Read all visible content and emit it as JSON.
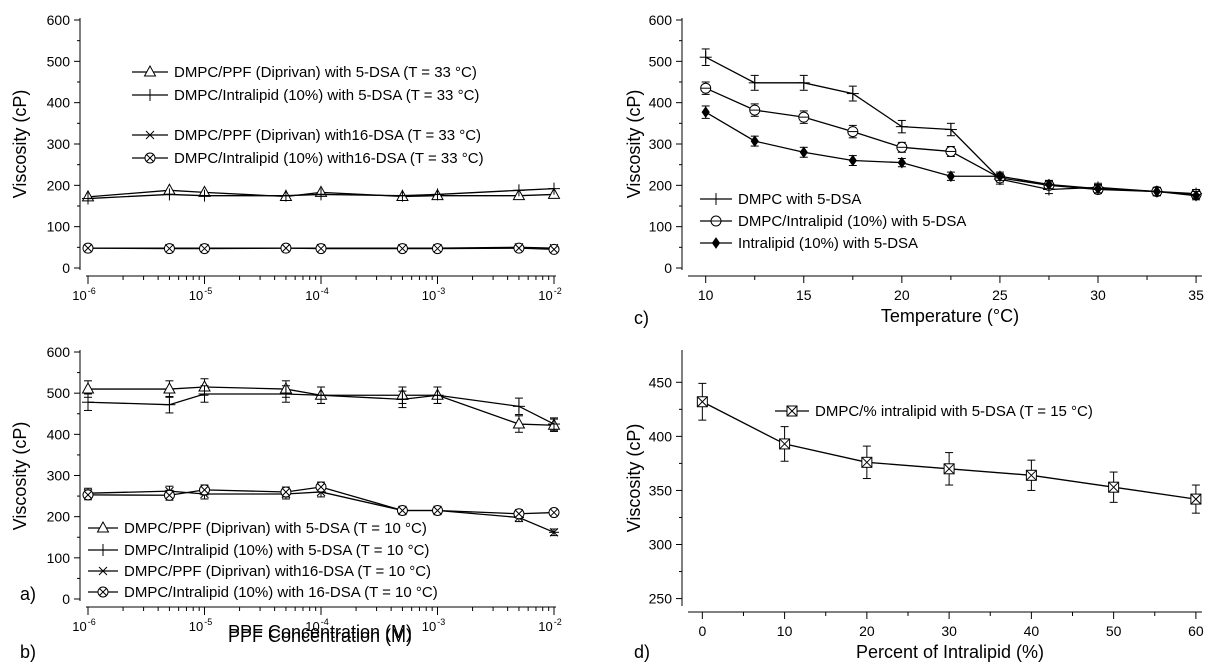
{
  "chart_data": [
    {
      "id": "a",
      "panel_label": "a)",
      "type": "line",
      "xlabel": "PPF Concentration (M)",
      "ylabel": "Viscosity (cP)",
      "x_scale": "log",
      "xlim": [
        1e-06,
        0.01
      ],
      "ylim": [
        0,
        600
      ],
      "yticks": [
        "0",
        "100",
        "200",
        "300",
        "400",
        "500",
        "600"
      ],
      "xticks": [
        {
          "base": "10",
          "exp": "-6"
        },
        {
          "base": "10",
          "exp": "-5"
        },
        {
          "base": "10",
          "exp": "-4"
        },
        {
          "base": "10",
          "exp": "-3"
        },
        {
          "base": "10",
          "exp": "-2"
        }
      ],
      "x": [
        1e-06,
        5e-06,
        1e-05,
        5e-05,
        0.0001,
        0.0005,
        0.001,
        0.005,
        0.01
      ],
      "series": [
        {
          "name": "DMPC/PPF (Diprivan) with 5-DSA (T = 33 °C)",
          "marker": "triangle",
          "values": [
            172,
            188,
            183,
            173,
            183,
            173,
            175,
            175,
            178
          ]
        },
        {
          "name": "DMPC/Intralipid (10%) with 5-DSA (T = 33 °C)",
          "marker": "plus",
          "values": [
            168,
            178,
            175,
            175,
            178,
            175,
            178,
            188,
            192
          ]
        },
        {
          "name": "DMPC/PPF (Diprivan) with16-DSA (T = 33 °C)",
          "marker": "asterisk",
          "values": [
            48,
            48,
            48,
            48,
            48,
            48,
            48,
            50,
            48
          ]
        },
        {
          "name": "DMPC/Intralipid (10%) with16-DSA (T = 33 °C)",
          "marker": "circle-x",
          "values": [
            48,
            47,
            47,
            48,
            47,
            47,
            47,
            48,
            45
          ]
        }
      ]
    },
    {
      "id": "b",
      "panel_label": "b)",
      "type": "line",
      "xlabel": "PPF Concentration (M)",
      "ylabel": "Viscosity (cP)",
      "x_scale": "log",
      "xlim": [
        1e-06,
        0.01
      ],
      "ylim": [
        0,
        600
      ],
      "yticks": [
        "0",
        "100",
        "200",
        "300",
        "400",
        "500",
        "600"
      ],
      "xticks": [
        {
          "base": "10",
          "exp": "-6"
        },
        {
          "base": "10",
          "exp": "-5"
        },
        {
          "base": "10",
          "exp": "-4"
        },
        {
          "base": "10",
          "exp": "-3"
        },
        {
          "base": "10",
          "exp": "-2"
        }
      ],
      "x": [
        1e-06,
        5e-06,
        1e-05,
        5e-05,
        0.0001,
        0.0005,
        0.001,
        0.005,
        0.01
      ],
      "series": [
        {
          "name": "DMPC/PPF (Diprivan) with 5-DSA (T = 10 °C)",
          "marker": "triangle",
          "values": [
            510,
            510,
            515,
            510,
            495,
            495,
            495,
            425,
            422
          ],
          "errors": [
            20,
            20,
            20,
            20,
            20,
            20,
            20,
            20,
            15
          ]
        },
        {
          "name": "DMPC/Intralipid (10%) with 5-DSA (T = 10 °C)",
          "marker": "plus",
          "values": [
            478,
            472,
            498,
            498,
            495,
            485,
            495,
            468,
            425
          ],
          "errors": [
            20,
            20,
            20,
            20,
            20,
            20,
            20,
            20,
            15
          ]
        },
        {
          "name": "DMPC/PPF (Diprivan) with16-DSA (T = 10 °C)",
          "marker": "asterisk",
          "values": [
            257,
            262,
            255,
            255,
            260,
            215,
            215,
            198,
            162
          ],
          "errors": [
            12,
            12,
            12,
            12,
            12,
            10,
            10,
            10,
            8
          ]
        },
        {
          "name": "DMPC/Intralipid (10%) with 16-DSA (T = 10 °C)",
          "marker": "circle-x",
          "values": [
            253,
            252,
            265,
            260,
            272,
            215,
            215,
            207,
            210
          ],
          "errors": [
            12,
            12,
            12,
            12,
            12,
            10,
            10,
            10,
            8
          ]
        }
      ]
    },
    {
      "id": "c",
      "panel_label": "c)",
      "type": "line",
      "xlabel": "Temperature (°C)",
      "ylabel": "Viscosity (cP)",
      "x_scale": "linear",
      "xlim": [
        9.2,
        35.2
      ],
      "ylim": [
        0,
        600
      ],
      "yticks": [
        "0",
        "100",
        "200",
        "300",
        "400",
        "500",
        "600"
      ],
      "xtick_values": [
        10,
        15,
        20,
        25,
        30,
        35
      ],
      "xticks": [
        "10",
        "15",
        "20",
        "25",
        "30",
        "35"
      ],
      "x": [
        10,
        12.5,
        15,
        17.5,
        20,
        22.5,
        25,
        27.5,
        30,
        33,
        35
      ],
      "series": [
        {
          "name": "DMPC with 5-DSA",
          "marker": "plus",
          "values": [
            510,
            448,
            448,
            422,
            342,
            335,
            215,
            190,
            195,
            185,
            180
          ],
          "errors": [
            20,
            18,
            18,
            18,
            15,
            15,
            12,
            10,
            10,
            10,
            10
          ]
        },
        {
          "name": "DMPC/Intralipid (10%) with 5-DSA",
          "marker": "circle",
          "values": [
            435,
            382,
            365,
            330,
            292,
            282,
            218,
            200,
            190,
            185,
            178
          ],
          "errors": [
            15,
            15,
            15,
            15,
            12,
            12,
            10,
            10,
            10,
            10,
            10
          ]
        },
        {
          "name": "Intralipid (10%) with 5-DSA",
          "marker": "diamond",
          "values": [
            377,
            307,
            280,
            260,
            255,
            222,
            222,
            202,
            192,
            185,
            175
          ],
          "errors": [
            15,
            12,
            12,
            12,
            10,
            10,
            10,
            10,
            10,
            10,
            10
          ]
        }
      ]
    },
    {
      "id": "d",
      "panel_label": "d)",
      "type": "line",
      "xlabel": "Percent of Intralipid (%)",
      "ylabel": "Viscosity (cP)",
      "x_scale": "linear",
      "xlim": [
        -1.5,
        60.5
      ],
      "ylim": [
        245,
        478
      ],
      "yticks": [
        "250",
        "300",
        "350",
        "400",
        "450"
      ],
      "ytick_values": [
        250,
        300,
        350,
        400,
        450
      ],
      "xtick_values": [
        0,
        10,
        20,
        30,
        40,
        50,
        60
      ],
      "xticks": [
        "0",
        "10",
        "20",
        "30",
        "40",
        "50",
        "60"
      ],
      "x": [
        0,
        10,
        20,
        30,
        40,
        50,
        60
      ],
      "series": [
        {
          "name": "DMPC/% intralipid with 5-DSA (T = 15 °C)",
          "marker": "square-x",
          "values": [
            432,
            393,
            376,
            370,
            364,
            353,
            342
          ],
          "errors": [
            17,
            16,
            15,
            15,
            14,
            14,
            13
          ]
        }
      ]
    }
  ]
}
